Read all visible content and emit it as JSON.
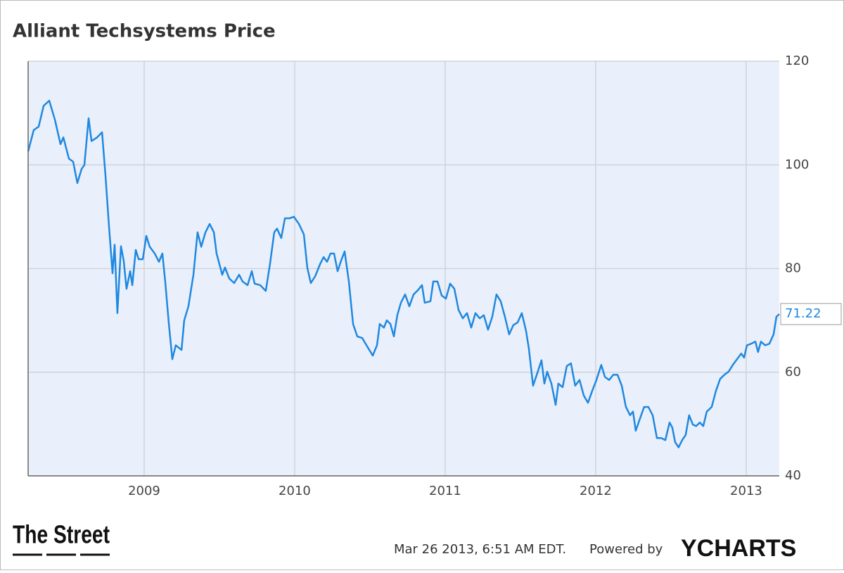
{
  "chart_data": {
    "type": "line",
    "title": "Alliant Techsystems Price",
    "x": [
      2008.229,
      2008.266,
      2008.299,
      2008.332,
      2008.369,
      2008.407,
      2008.444,
      2008.463,
      2008.5,
      2008.528,
      2008.556,
      2008.584,
      2008.603,
      2008.631,
      2008.65,
      2008.687,
      2008.72,
      2008.743,
      2008.766,
      2008.79,
      2008.804,
      2008.822,
      2008.846,
      2008.864,
      2008.883,
      2008.907,
      2008.921,
      2008.944,
      2008.963,
      2008.991,
      2009.014,
      2009.037,
      2009.07,
      2009.098,
      2009.121,
      2009.14,
      2009.164,
      2009.187,
      2009.21,
      2009.248,
      2009.266,
      2009.294,
      2009.327,
      2009.355,
      2009.379,
      2009.407,
      2009.435,
      2009.463,
      2009.481,
      2009.519,
      2009.537,
      2009.565,
      2009.598,
      2009.631,
      2009.654,
      2009.687,
      2009.715,
      2009.734,
      2009.771,
      2009.808,
      2009.836,
      2009.864,
      2009.883,
      2009.911,
      2009.935,
      2009.967,
      2009.995,
      2010.028,
      2010.061,
      2010.084,
      2010.107,
      2010.136,
      2010.168,
      2010.192,
      2010.215,
      2010.238,
      2010.262,
      2010.285,
      2010.308,
      2010.332,
      2010.36,
      2010.388,
      2010.416,
      2010.449,
      2010.481,
      2010.519,
      2010.547,
      2010.565,
      2010.593,
      2010.612,
      2010.636,
      2010.659,
      2010.682,
      2010.706,
      2010.734,
      2010.762,
      2010.79,
      2010.818,
      2010.846,
      2010.864,
      2010.902,
      2010.921,
      2010.949,
      2010.977,
      2011.005,
      2011.033,
      2011.061,
      2011.089,
      2011.117,
      2011.145,
      2011.173,
      2011.201,
      2011.229,
      2011.257,
      2011.285,
      2011.313,
      2011.341,
      2011.369,
      2011.397,
      2011.425,
      2011.453,
      2011.481,
      2011.509,
      2011.537,
      2011.556,
      2011.584,
      2011.612,
      2011.64,
      2011.659,
      2011.678,
      2011.706,
      2011.734,
      2011.752,
      2011.78,
      2011.808,
      2011.836,
      2011.864,
      2011.893,
      2011.921,
      2011.949,
      2011.977,
      2012.005,
      2012.037,
      2012.061,
      2012.089,
      2012.117,
      2012.145,
      2012.173,
      2012.201,
      2012.229,
      2012.248,
      2012.266,
      2012.294,
      2012.322,
      2012.35,
      2012.379,
      2012.407,
      2012.435,
      2012.463,
      2012.491,
      2012.509,
      2012.528,
      2012.551,
      2012.575,
      2012.598,
      2012.621,
      2012.645,
      2012.668,
      2012.692,
      2012.715,
      2012.738,
      2012.771,
      2012.799,
      2012.827,
      2012.855,
      2012.883,
      2012.911,
      2012.939,
      2012.967,
      2012.986,
      2013.005,
      2013.033,
      2013.061,
      2013.079,
      2013.098,
      2013.126,
      2013.154,
      2013.182,
      2013.201,
      2013.22
    ],
    "series": [
      {
        "name": "Alliant Techsystems Price",
        "color": "#1f88e0",
        "values": [
          102.6,
          106.7,
          107.4,
          111.4,
          112.4,
          108.7,
          104,
          105.3,
          101.2,
          100.6,
          96.5,
          99.2,
          100,
          109,
          104.6,
          105.3,
          106.3,
          97.9,
          88.3,
          79.1,
          84.6,
          71.4,
          84.3,
          81.5,
          76.1,
          79.5,
          76.8,
          83.6,
          81.8,
          81.8,
          86.3,
          84.2,
          82.9,
          81.3,
          82.9,
          77.5,
          69.3,
          62.5,
          65.2,
          64.3,
          70,
          72.7,
          78.8,
          87,
          84.2,
          87,
          88.6,
          87,
          82.9,
          78.8,
          80.2,
          78.1,
          77.2,
          78.8,
          77.5,
          76.8,
          79.5,
          77.1,
          76.8,
          75.7,
          80.9,
          87,
          87.7,
          85.9,
          89.7,
          89.7,
          90,
          88.6,
          86.6,
          80.2,
          77.2,
          78.5,
          80.8,
          82.2,
          81.3,
          82.9,
          82.9,
          79.5,
          81.5,
          83.3,
          77.5,
          69.3,
          66.9,
          66.6,
          65,
          63.2,
          65.2,
          69.3,
          68.6,
          70,
          69.3,
          66.9,
          71,
          73.4,
          75,
          72.7,
          75,
          75.8,
          76.8,
          73.4,
          73.7,
          77.5,
          77.5,
          74.8,
          74.2,
          77.1,
          76.1,
          72,
          70.4,
          71.4,
          68.6,
          71.4,
          70.4,
          71,
          68.2,
          70.7,
          75,
          73.7,
          70.7,
          67.3,
          69.1,
          69.6,
          71.4,
          68,
          64.6,
          57.4,
          59.8,
          62.3,
          57.8,
          60.1,
          57.8,
          53.7,
          57.8,
          57.1,
          61.2,
          61.7,
          57.4,
          58.5,
          55.5,
          54.1,
          56.4,
          58.5,
          61.4,
          59.1,
          58.5,
          59.5,
          59.5,
          57.4,
          53.3,
          51.7,
          52.4,
          48.7,
          51,
          53.3,
          53.3,
          51.7,
          47.3,
          47.3,
          46.9,
          50.3,
          49.3,
          46.5,
          45.5,
          46.9,
          47.9,
          51.7,
          49.9,
          49.6,
          50.3,
          49.6,
          52.4,
          53.3,
          56.4,
          58.7,
          59.5,
          60.1,
          61.4,
          62.5,
          63.6,
          62.8,
          65.2,
          65.5,
          65.9,
          63.9,
          65.9,
          65.2,
          65.5,
          67.3,
          70.7,
          71.22
        ]
      }
    ],
    "xlim": [
      2008.229,
      2013.22
    ],
    "xticks": [
      2009,
      2010,
      2011,
      2012,
      2013
    ],
    "ylim": [
      40,
      120
    ],
    "yticks": [
      40,
      60,
      80,
      100,
      120
    ],
    "grid": true
  },
  "footer": {
    "logo": "The Street",
    "timestamp": "Mar 26 2013, 6:51 AM EDT.",
    "powered": "Powered by",
    "brand": "YCHARTS"
  }
}
